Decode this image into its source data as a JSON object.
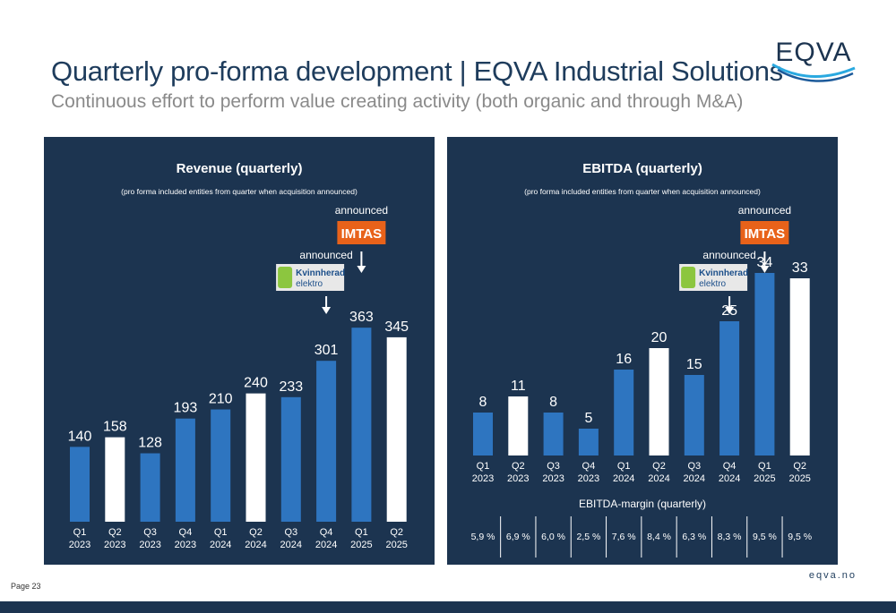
{
  "header": {
    "title": "Quarterly pro-forma development | EQVA Industrial Solutions",
    "subtitle": "Continuous effort to perform value creating activity (both organic and through M&A)",
    "logo_text": "EQVA"
  },
  "footer": {
    "page": "Page 23",
    "site": "eqva.no"
  },
  "colors": {
    "navy": "#1c3450",
    "blue_bar": "#2e75c0",
    "white_bar": "#ffffff",
    "imtas_orange": "#e8621a",
    "kvinnherad_green": "#8cc63f"
  },
  "annotations": {
    "announced": "announced",
    "imtas": "IMTAS",
    "kvinnherad_line1": "Kvinnherad",
    "kvinnherad_line2": "elektro"
  },
  "chart_data": [
    {
      "type": "bar",
      "title": "Revenue (quarterly)",
      "note": "(pro forma included entities from quarter when acquisition announced)",
      "categories": [
        "Q1 2023",
        "Q2 2023",
        "Q3 2023",
        "Q4 2023",
        "Q1 2024",
        "Q2 2024",
        "Q3 2024",
        "Q4 2024",
        "Q1 2025",
        "Q2 2025"
      ],
      "values": [
        140,
        158,
        128,
        193,
        210,
        240,
        233,
        301,
        363,
        345
      ],
      "highlighted": [
        false,
        true,
        false,
        false,
        false,
        true,
        false,
        false,
        false,
        true
      ],
      "ylim": [
        0,
        380
      ],
      "acquisitions": [
        {
          "name": "Kvinnherad elektro",
          "at": "Q4 2024",
          "label": "announced"
        },
        {
          "name": "IMTAS",
          "at": "Q1 2025",
          "label": "announced"
        }
      ]
    },
    {
      "type": "bar",
      "title": "EBITDA (quarterly)",
      "note": "(pro forma included entities from quarter when acquisition announced)",
      "categories": [
        "Q1 2023",
        "Q2 2023",
        "Q3 2023",
        "Q4 2023",
        "Q1 2024",
        "Q2 2024",
        "Q3 2024",
        "Q4 2024",
        "Q1 2025",
        "Q2 2025"
      ],
      "values": [
        8,
        11,
        8,
        5,
        16,
        20,
        15,
        25,
        34,
        33
      ],
      "highlighted": [
        false,
        true,
        false,
        false,
        false,
        true,
        false,
        false,
        false,
        true
      ],
      "ylim": [
        0,
        36
      ],
      "acquisitions": [
        {
          "name": "Kvinnherad elektro",
          "at": "Q4 2024",
          "label": "announced"
        },
        {
          "name": "IMTAS",
          "at": "Q1 2025",
          "label": "announced"
        }
      ],
      "margin_title": "EBITDA-margin (quarterly)",
      "margins": [
        "5,9 %",
        "6,9 %",
        "6,0 %",
        "2,5 %",
        "7,6 %",
        "8,4 %",
        "6,3 %",
        "8,3 %",
        "9,5 %",
        "9,5 %"
      ]
    }
  ]
}
